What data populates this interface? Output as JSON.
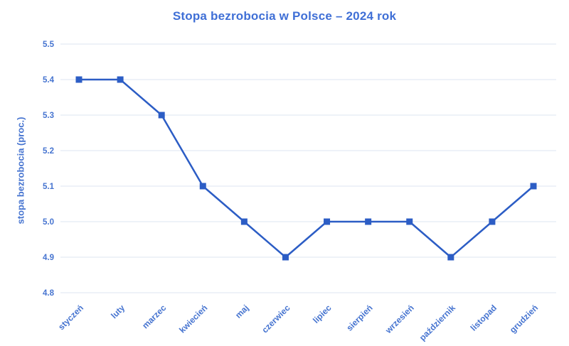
{
  "chart_data": {
    "type": "line",
    "title": "Stopa bezrobocia w Polsce – 2024 rok",
    "xlabel": "",
    "ylabel": "stopa bezrobocia (proc.)",
    "categories": [
      "styczeń",
      "luty",
      "marzec",
      "kwiecień",
      "maj",
      "czerwiec",
      "lipiec",
      "sierpień",
      "wrzesień",
      "październik",
      "listopad",
      "grudzień"
    ],
    "values": [
      5.4,
      5.4,
      5.3,
      5.1,
      5.0,
      4.9,
      5.0,
      5.0,
      5.0,
      4.9,
      5.0,
      5.1
    ],
    "ylim": [
      4.8,
      5.5
    ],
    "ytick_labels": [
      "5.5",
      "5.4",
      "5.3",
      "5.2",
      "5.1",
      "5.0",
      "4.9",
      "4.8"
    ],
    "grid": true,
    "legend": "none",
    "marker": "square",
    "colors": {
      "line": "#2c5dc5",
      "marker": "#2c5dc5",
      "gridline": "#e9eef6",
      "tick_text": "#4674d0",
      "title_text": "#3f6fd6",
      "background": "#ffffff"
    }
  }
}
